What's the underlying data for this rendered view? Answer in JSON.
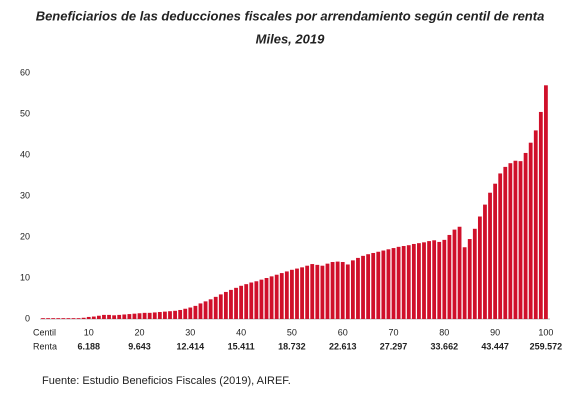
{
  "chart_data": {
    "type": "bar",
    "title": "Beneficiarios de las deducciones fiscales por arrendamiento según centil de renta",
    "subtitle": "Miles, 2019",
    "x_label": "Centil",
    "secondary_label": "Renta",
    "source": "Fuente: Estudio Beneficios Fiscales (2019), AIREF.",
    "color": "#d0102a",
    "grid": false,
    "ylim": [
      0,
      60
    ],
    "yticks": [
      0,
      10,
      20,
      30,
      40,
      50,
      60
    ],
    "categories": [
      null,
      null,
      null,
      null,
      null,
      null,
      null,
      null,
      null,
      10,
      null,
      null,
      null,
      null,
      null,
      null,
      null,
      null,
      null,
      20,
      null,
      null,
      null,
      null,
      null,
      null,
      null,
      null,
      null,
      30,
      null,
      null,
      null,
      null,
      null,
      null,
      null,
      null,
      null,
      40,
      null,
      null,
      null,
      null,
      null,
      null,
      null,
      null,
      null,
      50,
      null,
      null,
      null,
      null,
      null,
      null,
      null,
      null,
      null,
      60,
      null,
      null,
      null,
      null,
      null,
      null,
      null,
      null,
      null,
      70,
      null,
      null,
      null,
      null,
      null,
      null,
      null,
      null,
      null,
      80,
      null,
      null,
      null,
      null,
      null,
      null,
      null,
      null,
      null,
      90,
      null,
      null,
      null,
      null,
      null,
      null,
      null,
      null,
      null,
      100
    ],
    "secondary_categories": [
      null,
      null,
      null,
      null,
      null,
      null,
      null,
      null,
      null,
      "6.188",
      null,
      null,
      null,
      null,
      null,
      null,
      null,
      null,
      null,
      "9.643",
      null,
      null,
      null,
      null,
      null,
      null,
      null,
      null,
      null,
      "12.414",
      null,
      null,
      null,
      null,
      null,
      null,
      null,
      null,
      null,
      "15.411",
      null,
      null,
      null,
      null,
      null,
      null,
      null,
      null,
      null,
      "18.732",
      null,
      null,
      null,
      null,
      null,
      null,
      null,
      null,
      null,
      "22.613",
      null,
      null,
      null,
      null,
      null,
      null,
      null,
      null,
      null,
      "27.297",
      null,
      null,
      null,
      null,
      null,
      null,
      null,
      null,
      null,
      "33.662",
      null,
      null,
      null,
      null,
      null,
      null,
      null,
      null,
      null,
      "43.447",
      null,
      null,
      null,
      null,
      null,
      null,
      null,
      null,
      null,
      "259.572"
    ],
    "values": [
      0.2,
      0.2,
      0.2,
      0.2,
      0.2,
      0.2,
      0.2,
      0.2,
      0.3,
      0.5,
      0.6,
      0.8,
      1.0,
      1.0,
      0.9,
      1.0,
      1.1,
      1.2,
      1.3,
      1.4,
      1.5,
      1.5,
      1.6,
      1.7,
      1.8,
      1.9,
      2.0,
      2.2,
      2.5,
      2.8,
      3.2,
      3.8,
      4.3,
      4.8,
      5.4,
      6.0,
      6.6,
      7.1,
      7.6,
      8.1,
      8.5,
      8.9,
      9.2,
      9.6,
      10.0,
      10.4,
      10.8,
      11.2,
      11.6,
      12.0,
      12.3,
      12.6,
      13.0,
      13.4,
      13.2,
      13.0,
      13.5,
      13.9,
      14.0,
      13.9,
      13.3,
      14.3,
      14.9,
      15.4,
      15.8,
      16.1,
      16.4,
      16.7,
      17.0,
      17.3,
      17.6,
      17.8,
      18.0,
      18.3,
      18.5,
      18.7,
      19.0,
      19.2,
      18.8,
      19.3,
      20.5,
      21.8,
      22.5,
      17.5,
      19.5,
      22.0,
      25.0,
      27.9,
      30.8,
      33.0,
      35.5,
      37.1,
      38.0,
      38.6,
      38.5,
      40.5,
      43.0,
      46.0,
      50.5,
      57.0
    ]
  }
}
